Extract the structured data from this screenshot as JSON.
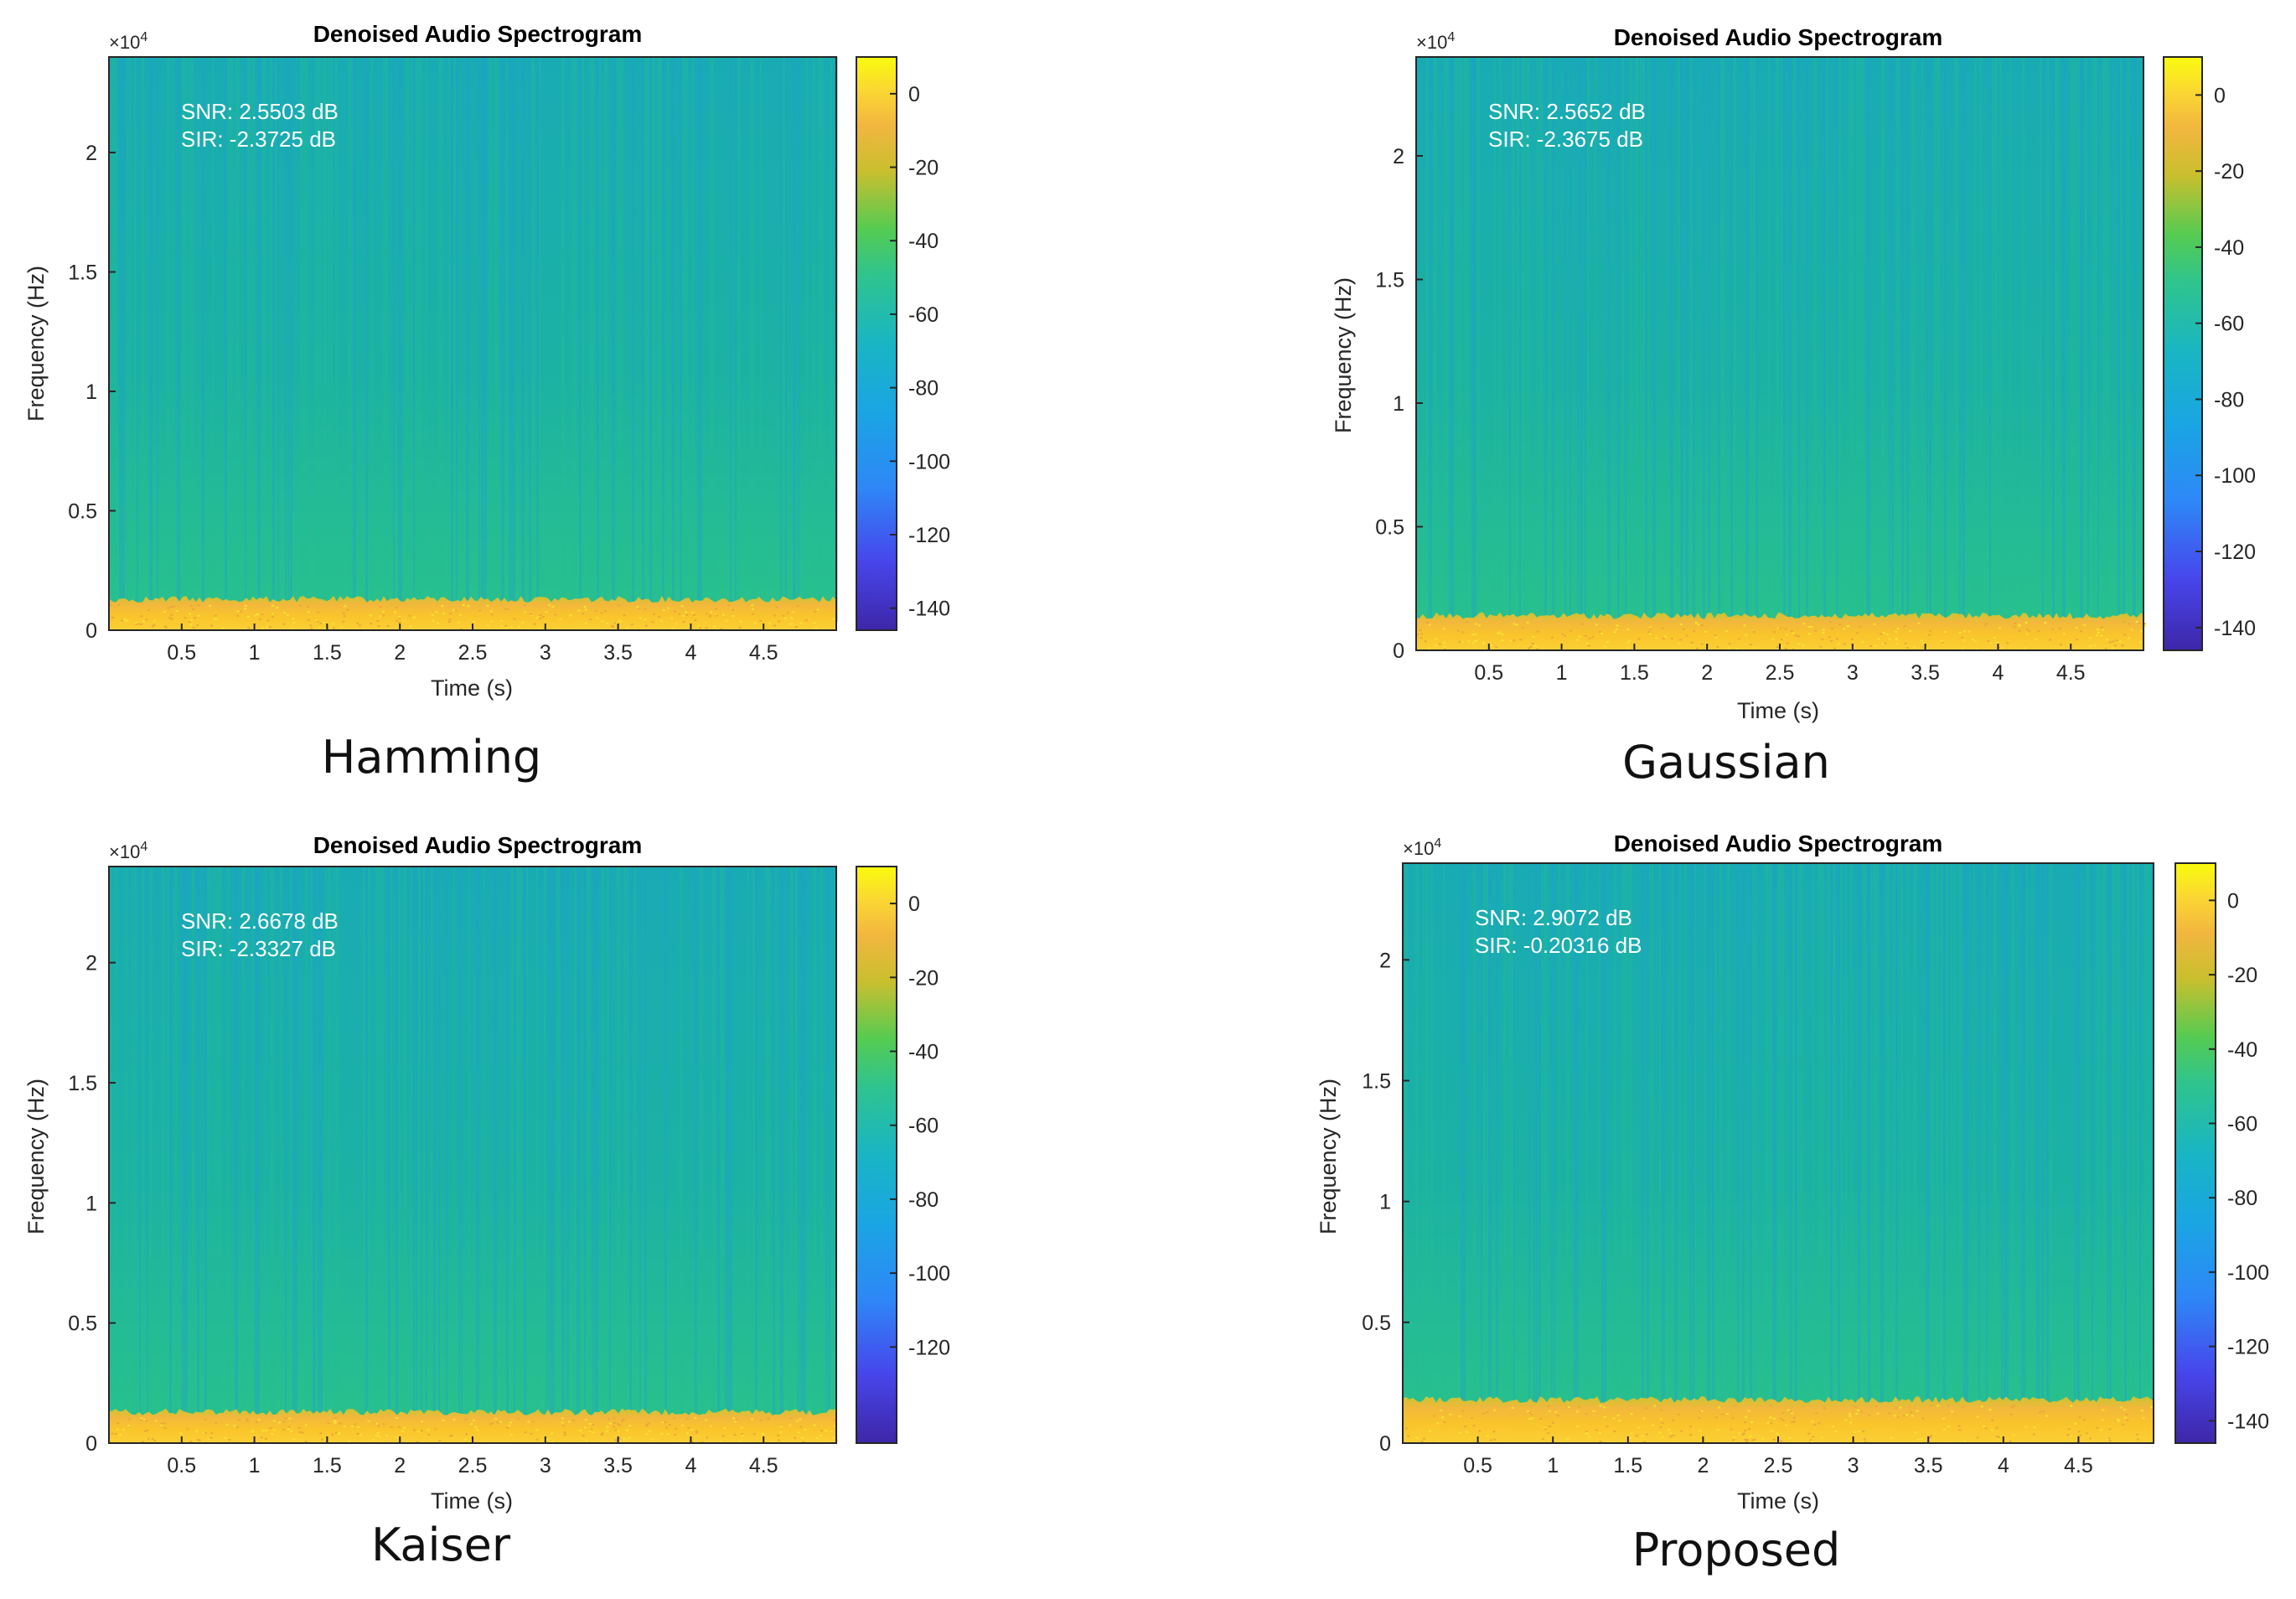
{
  "figure": {
    "panels": [
      {
        "caption": "Hamming"
      },
      {
        "caption": "Gaussian"
      },
      {
        "caption": "Kaiser"
      },
      {
        "caption": "Proposed"
      }
    ]
  },
  "colors": {
    "background_field": "#1db1a2",
    "band_top": "#f3c92a",
    "text": "#262626",
    "annotation": "#ffffff",
    "colormap": [
      "#3e26a8",
      "#4746eb",
      "#2e87f7",
      "#19b2e2",
      "#2fc48e",
      "#55cb52",
      "#acc531",
      "#f2b63f",
      "#fbd633",
      "#f9fb0e"
    ]
  },
  "chart_data": [
    {
      "type": "heatmap",
      "title": "Denoised Audio Spectrogram",
      "xlabel": "Time (s)",
      "ylabel": "Frequency (Hz)",
      "y_exponent_label": "×10",
      "y_exponent_power": "4",
      "xlim": [
        0,
        5
      ],
      "ylim": [
        0,
        2.4
      ],
      "x_ticks": [
        0.5,
        1,
        1.5,
        2,
        2.5,
        3,
        3.5,
        4,
        4.5
      ],
      "x_tick_labels": [
        "0.5",
        "1",
        "1.5",
        "2",
        "2.5",
        "3",
        "3.5",
        "4",
        "4.5"
      ],
      "y_ticks": [
        0,
        0.5,
        1,
        1.5,
        2
      ],
      "y_tick_labels": [
        "0",
        "0.5",
        "1",
        "1.5",
        "2"
      ],
      "colorbar_range": [
        -146,
        10
      ],
      "colorbar_ticks": [
        0,
        -20,
        -40,
        -60,
        -80,
        -100,
        -120,
        -140
      ],
      "colorbar_tick_labels": [
        "0",
        "-20",
        "-40",
        "-60",
        "-80",
        "-100",
        "-120",
        "-140"
      ],
      "annotations": [
        "SNR: 2.5503 dB",
        "SIR: -2.3725 dB"
      ],
      "band_top_value": 0.13,
      "caption": "Hamming"
    },
    {
      "type": "heatmap",
      "title": "Denoised Audio Spectrogram",
      "xlabel": "Time (s)",
      "ylabel": "Frequency (Hz)",
      "y_exponent_label": "×10",
      "y_exponent_power": "4",
      "xlim": [
        0,
        5
      ],
      "ylim": [
        0,
        2.4
      ],
      "x_ticks": [
        0.5,
        1,
        1.5,
        2,
        2.5,
        3,
        3.5,
        4,
        4.5
      ],
      "x_tick_labels": [
        "0.5",
        "1",
        "1.5",
        "2",
        "2.5",
        "3",
        "3.5",
        "4",
        "4.5"
      ],
      "y_ticks": [
        0,
        0.5,
        1,
        1.5,
        2
      ],
      "y_tick_labels": [
        "0",
        "0.5",
        "1",
        "1.5",
        "2"
      ],
      "colorbar_range": [
        -146,
        10
      ],
      "colorbar_ticks": [
        0,
        -20,
        -40,
        -60,
        -80,
        -100,
        -120,
        -140
      ],
      "colorbar_tick_labels": [
        "0",
        "-20",
        "-40",
        "-60",
        "-80",
        "-100",
        "-120",
        "-140"
      ],
      "annotations": [
        "SNR: 2.5652 dB",
        "SIR: -2.3675 dB"
      ],
      "band_top_value": 0.14,
      "caption": "Gaussian"
    },
    {
      "type": "heatmap",
      "title": "Denoised Audio Spectrogram",
      "xlabel": "Time (s)",
      "ylabel": "Frequency (Hz)",
      "y_exponent_label": "×10",
      "y_exponent_power": "4",
      "xlim": [
        0,
        5
      ],
      "ylim": [
        0,
        2.4
      ],
      "x_ticks": [
        0.5,
        1,
        1.5,
        2,
        2.5,
        3,
        3.5,
        4,
        4.5
      ],
      "x_tick_labels": [
        "0.5",
        "1",
        "1.5",
        "2",
        "2.5",
        "3",
        "3.5",
        "4",
        "4.5"
      ],
      "y_ticks": [
        0,
        0.5,
        1,
        1.5,
        2
      ],
      "y_tick_labels": [
        "0",
        "0.5",
        "1",
        "1.5",
        "2"
      ],
      "colorbar_range": [
        -146,
        10
      ],
      "colorbar_ticks": [
        0,
        -20,
        -40,
        -60,
        -80,
        -100,
        -120
      ],
      "colorbar_tick_labels": [
        "0",
        "-20",
        "-40",
        "-60",
        "-80",
        "-100",
        "-120"
      ],
      "annotations": [
        "SNR: 2.6678 dB",
        "SIR: -2.3327 dB"
      ],
      "band_top_value": 0.13,
      "caption": "Kaiser"
    },
    {
      "type": "heatmap",
      "title": "Denoised Audio Spectrogram",
      "xlabel": "Time (s)",
      "ylabel": "Frequency (Hz)",
      "y_exponent_label": "×10",
      "y_exponent_power": "4",
      "xlim": [
        0,
        5
      ],
      "ylim": [
        0,
        2.4
      ],
      "x_ticks": [
        0.5,
        1,
        1.5,
        2,
        2.5,
        3,
        3.5,
        4,
        4.5
      ],
      "x_tick_labels": [
        "0.5",
        "1",
        "1.5",
        "2",
        "2.5",
        "3",
        "3.5",
        "4",
        "4.5"
      ],
      "y_ticks": [
        0,
        0.5,
        1,
        1.5,
        2
      ],
      "y_tick_labels": [
        "0",
        "0.5",
        "1",
        "1.5",
        "2"
      ],
      "colorbar_range": [
        -146,
        10
      ],
      "colorbar_ticks": [
        0,
        -20,
        -40,
        -60,
        -80,
        -100,
        -120,
        -140
      ],
      "colorbar_tick_labels": [
        "0",
        "-20",
        "-40",
        "-60",
        "-80",
        "-100",
        "-120",
        "-140"
      ],
      "annotations": [
        "SNR: 2.9072 dB",
        "SIR: -0.20316 dB"
      ],
      "band_top_value": 0.18,
      "caption": "Proposed"
    }
  ]
}
